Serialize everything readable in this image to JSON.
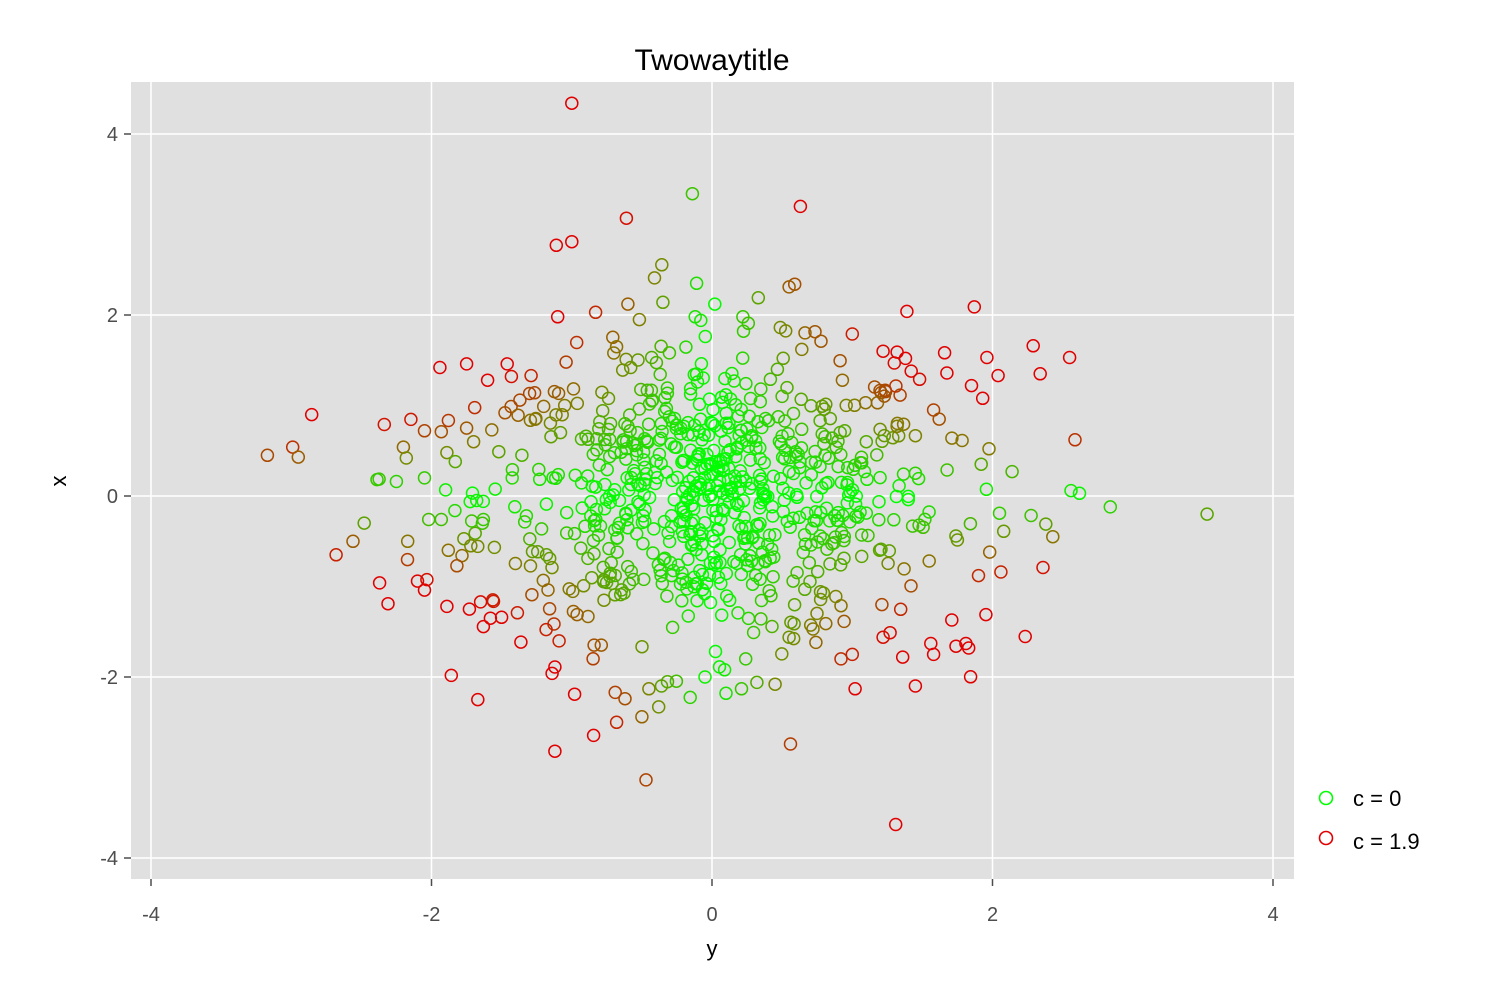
{
  "chart_data": {
    "type": "scatter",
    "title": "Twowaytitle",
    "xlabel": "y",
    "ylabel": "x",
    "xlim": [
      -4.2,
      4.2
    ],
    "ylim": [
      -4.2,
      4.5
    ],
    "xticks": [
      -4,
      -2,
      0,
      2,
      4
    ],
    "yticks": [
      -4,
      -2,
      0,
      2,
      4
    ],
    "x_tick_labels": [
      "-4",
      "-2",
      "0",
      "2",
      "4"
    ],
    "y_tick_labels": [
      "-4",
      "-2",
      "0",
      "2",
      "4"
    ],
    "grid": true,
    "background": "#e0e0e0",
    "grid_color": "#ffffff",
    "legend_position": "right",
    "color_scale": {
      "low_value": 0,
      "low_color": "#00ff00",
      "mid_color": "#808000",
      "high_value": 1.9,
      "high_color": "#e00000"
    },
    "legend": [
      {
        "label": "c = 0",
        "color": "#00ff00"
      },
      {
        "label": "c = 1.9",
        "color": "#e00000"
      }
    ],
    "points": [
      {
        "x": -1.0,
        "y": 4.34
      },
      {
        "x": -0.14,
        "y": 3.34
      },
      {
        "x": 0.63,
        "y": 3.2
      },
      {
        "x": -0.61,
        "y": 3.07
      },
      {
        "x": -1.0,
        "y": 2.81
      },
      {
        "x": -1.11,
        "y": 2.77
      },
      {
        "x": 0.59,
        "y": 2.34
      },
      {
        "x": -0.41,
        "y": 2.41
      },
      {
        "x": -0.11,
        "y": 2.35
      },
      {
        "x": 0.55,
        "y": 2.31
      },
      {
        "x": 0.33,
        "y": 2.19
      },
      {
        "x": -0.35,
        "y": 2.14
      },
      {
        "x": -0.6,
        "y": 2.12
      },
      {
        "x": 0.02,
        "y": 2.12
      },
      {
        "x": -0.83,
        "y": 2.03
      },
      {
        "x": -1.1,
        "y": 1.98
      },
      {
        "x": 1.87,
        "y": 2.09
      },
      {
        "x": 1.39,
        "y": 2.04
      },
      {
        "x": -0.12,
        "y": 1.98
      },
      {
        "x": -0.08,
        "y": 1.94
      },
      {
        "x": 0.22,
        "y": 1.98
      },
      {
        "x": 0.5,
        "y": 1.1
      },
      {
        "x": 1.0,
        "y": 1.79
      },
      {
        "x": 2.29,
        "y": 1.66
      },
      {
        "x": 2.55,
        "y": 1.53
      },
      {
        "x": -1.94,
        "y": 1.42
      },
      {
        "x": -1.75,
        "y": 1.46
      },
      {
        "x": -1.46,
        "y": 1.46
      },
      {
        "x": -1.29,
        "y": 1.33
      },
      {
        "x": -1.04,
        "y": 1.48
      },
      {
        "x": 1.22,
        "y": 1.6
      },
      {
        "x": 1.32,
        "y": 1.59
      },
      {
        "x": 1.38,
        "y": 1.52
      },
      {
        "x": 1.3,
        "y": 1.47
      },
      {
        "x": 1.96,
        "y": 1.53
      },
      {
        "x": 2.34,
        "y": 1.35
      },
      {
        "x": 1.85,
        "y": 1.22
      },
      {
        "x": 2.04,
        "y": 1.33
      },
      {
        "x": 1.42,
        "y": 1.38
      },
      {
        "x": 1.48,
        "y": 1.29
      },
      {
        "x": -1.6,
        "y": 1.28
      },
      {
        "x": -1.43,
        "y": 1.32
      },
      {
        "x": -0.7,
        "y": 1.58
      },
      {
        "x": -0.68,
        "y": 1.65
      },
      {
        "x": -0.58,
        "y": 1.42
      },
      {
        "x": -0.43,
        "y": 1.53
      },
      {
        "x": 0.64,
        "y": 1.62
      },
      {
        "x": 0.93,
        "y": 1.28
      },
      {
        "x": 1.18,
        "y": 1.03
      },
      {
        "x": 1.58,
        "y": 0.95
      },
      {
        "x": 1.93,
        "y": 1.08
      },
      {
        "x": -1.05,
        "y": 1.0
      },
      {
        "x": -1.2,
        "y": 0.99
      },
      {
        "x": -1.37,
        "y": 1.06
      },
      {
        "x": -1.08,
        "y": 0.7
      },
      {
        "x": -0.8,
        "y": 0.82
      },
      {
        "x": -0.6,
        "y": 0.77
      },
      {
        "x": 0.8,
        "y": 0.96
      },
      {
        "x": 1.32,
        "y": 0.77
      },
      {
        "x": 1.62,
        "y": 0.85
      },
      {
        "x": 1.1,
        "y": 0.6
      },
      {
        "x": -3.17,
        "y": 0.45
      },
      {
        "x": -2.99,
        "y": 0.54
      },
      {
        "x": -2.95,
        "y": 0.43
      },
      {
        "x": -2.2,
        "y": 0.54
      },
      {
        "x": -2.05,
        "y": 0.72
      },
      {
        "x": -1.93,
        "y": 0.71
      },
      {
        "x": -1.75,
        "y": 0.75
      },
      {
        "x": -1.57,
        "y": 0.73
      },
      {
        "x": -2.25,
        "y": 0.16
      },
      {
        "x": -2.05,
        "y": 0.2
      },
      {
        "x": -1.89,
        "y": 0.48
      },
      {
        "x": -1.7,
        "y": 0.6
      },
      {
        "x": -1.52,
        "y": 0.49
      },
      {
        "x": -2.18,
        "y": 0.42
      },
      {
        "x": -1.83,
        "y": 0.38
      },
      {
        "x": 2.14,
        "y": 0.27
      },
      {
        "x": 2.56,
        "y": 0.06
      },
      {
        "x": 2.62,
        "y": 0.03
      },
      {
        "x": 2.84,
        "y": -0.12
      },
      {
        "x": 3.53,
        "y": -0.2
      },
      {
        "x": 2.38,
        "y": -0.31
      },
      {
        "x": 2.43,
        "y": -0.45
      },
      {
        "x": 2.05,
        "y": -0.19
      },
      {
        "x": 2.08,
        "y": -0.39
      },
      {
        "x": 1.98,
        "y": -0.62
      },
      {
        "x": 2.06,
        "y": -0.84
      },
      {
        "x": 2.36,
        "y": -0.79
      },
      {
        "x": 1.9,
        "y": -0.88
      },
      {
        "x": -2.68,
        "y": -0.65
      },
      {
        "x": -2.56,
        "y": -0.5
      },
      {
        "x": -2.48,
        "y": -0.3
      },
      {
        "x": -2.17,
        "y": -0.5
      },
      {
        "x": -2.02,
        "y": -0.26
      },
      {
        "x": -1.93,
        "y": -0.26
      },
      {
        "x": -1.88,
        "y": -0.6
      },
      {
        "x": -1.72,
        "y": -0.55
      },
      {
        "x": -1.63,
        "y": -0.26
      },
      {
        "x": -2.37,
        "y": -0.96
      },
      {
        "x": -2.31,
        "y": -1.19
      },
      {
        "x": -2.1,
        "y": -0.94
      },
      {
        "x": -2.05,
        "y": -1.04
      },
      {
        "x": -1.89,
        "y": -1.22
      },
      {
        "x": -1.73,
        "y": -1.25
      },
      {
        "x": -1.65,
        "y": -1.17
      },
      {
        "x": -1.58,
        "y": -1.35
      },
      {
        "x": -1.5,
        "y": -1.34
      },
      {
        "x": -1.67,
        "y": -2.25
      },
      {
        "x": -1.12,
        "y": -1.89
      },
      {
        "x": -1.14,
        "y": -1.96
      },
      {
        "x": -1.12,
        "y": -2.82
      },
      {
        "x": -0.98,
        "y": -2.19
      },
      {
        "x": 0.56,
        "y": -2.74
      },
      {
        "x": 1.31,
        "y": -3.63
      },
      {
        "x": 1.45,
        "y": -2.1
      },
      {
        "x": 1.36,
        "y": -1.78
      },
      {
        "x": 1.56,
        "y": -1.63
      },
      {
        "x": 1.58,
        "y": -1.75
      },
      {
        "x": 1.74,
        "y": -1.66
      },
      {
        "x": 1.81,
        "y": -1.63
      },
      {
        "x": 1.83,
        "y": -1.68
      },
      {
        "x": 1.71,
        "y": -1.37
      },
      {
        "x": 1.22,
        "y": -1.56
      },
      {
        "x": 1.27,
        "y": -1.51
      },
      {
        "x": 1.0,
        "y": -1.75
      },
      {
        "x": 1.02,
        "y": -2.13
      },
      {
        "x": 0.92,
        "y": -1.8
      },
      {
        "x": 0.45,
        "y": -2.08
      },
      {
        "x": 0.1,
        "y": -2.18
      },
      {
        "x": 0.21,
        "y": -2.13
      },
      {
        "x": 0.32,
        "y": -2.06
      },
      {
        "x": -0.05,
        "y": -2.0
      },
      {
        "x": -0.5,
        "y": -2.44
      },
      {
        "x": -0.68,
        "y": -2.5
      },
      {
        "x": -0.38,
        "y": -2.33
      },
      {
        "x": -0.62,
        "y": -2.24
      },
      {
        "x": -0.69,
        "y": -2.17
      },
      {
        "x": -0.45,
        "y": -2.13
      },
      {
        "x": -0.36,
        "y": -2.1
      },
      {
        "x": 0.24,
        "y": -1.8
      },
      {
        "x": 0.09,
        "y": -1.92
      },
      {
        "x": 0.55,
        "y": -1.56
      },
      {
        "x": 0.72,
        "y": -1.47
      }
    ],
    "point_colors": "#808000"
  }
}
